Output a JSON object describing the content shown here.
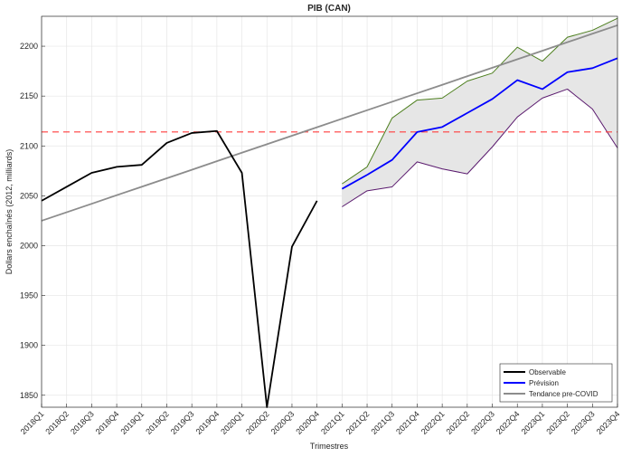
{
  "chart_data": {
    "type": "line",
    "title": "PIB (CAN)",
    "x_label": "Trimestres",
    "y_label": "Dollars enchaînés (2012, milliards)",
    "categories": [
      "2018Q1",
      "2018Q2",
      "2018Q3",
      "2018Q4",
      "2019Q1",
      "2019Q2",
      "2019Q3",
      "2019Q4",
      "2020Q1",
      "2020Q2",
      "2020Q3",
      "2020Q4",
      "2021Q1",
      "2021Q2",
      "2021Q3",
      "2021Q4",
      "2022Q1",
      "2022Q2",
      "2022Q3",
      "2022Q4",
      "2023Q1",
      "2023Q2",
      "2023Q3",
      "2023Q4"
    ],
    "series": [
      {
        "name": "Observable",
        "color": "#000000",
        "values": [
          2045,
          2059,
          2073,
          2079,
          2081,
          2103,
          2113,
          2115,
          2073,
          1838,
          1999,
          2045,
          null,
          null,
          null,
          null,
          null,
          null,
          null,
          null,
          null,
          null,
          null,
          null
        ]
      },
      {
        "name": "Prévision",
        "color": "#0000ff",
        "values": [
          null,
          null,
          null,
          null,
          null,
          null,
          null,
          null,
          null,
          null,
          null,
          null,
          2057,
          2071,
          2086,
          2114,
          2119,
          2133,
          2147,
          2166,
          2157,
          2174,
          2178,
          2188
        ]
      },
      {
        "name": "Tendance pre-COVID",
        "color": "#8c8c8c",
        "values": [
          2025,
          2033.5,
          2042,
          2050.6,
          2059.1,
          2067.6,
          2076.1,
          2084.7,
          2093.2,
          2101.7,
          2110.2,
          2118.7,
          2127.3,
          2135.8,
          2144.3,
          2152.8,
          2161.3,
          2169.9,
          2178.4,
          2186.9,
          2195.4,
          2204,
          2212.5,
          2221
        ]
      }
    ],
    "band": {
      "upper": [
        null,
        null,
        null,
        null,
        null,
        null,
        null,
        null,
        null,
        null,
        null,
        null,
        2062,
        2079,
        2128,
        2146,
        2148,
        2165,
        2173,
        2199,
        2185,
        2209,
        2216,
        2228
      ],
      "lower": [
        null,
        null,
        null,
        null,
        null,
        null,
        null,
        null,
        null,
        null,
        null,
        null,
        2039,
        2055,
        2059,
        2084,
        2077,
        2072,
        2099,
        2129,
        2148,
        2157,
        2137,
        2098
      ],
      "upper_color": "#4d7f1e",
      "lower_color": "#5a1a6e",
      "fill": "#e6e6e6"
    },
    "reference_line": {
      "value": 2114,
      "color": "#ff3b3b"
    },
    "ylim": [
      1838,
      2230
    ],
    "yticks": [
      1850,
      1900,
      1950,
      2000,
      2050,
      2100,
      2150,
      2200
    ],
    "grid": true,
    "legend": "lower right"
  }
}
